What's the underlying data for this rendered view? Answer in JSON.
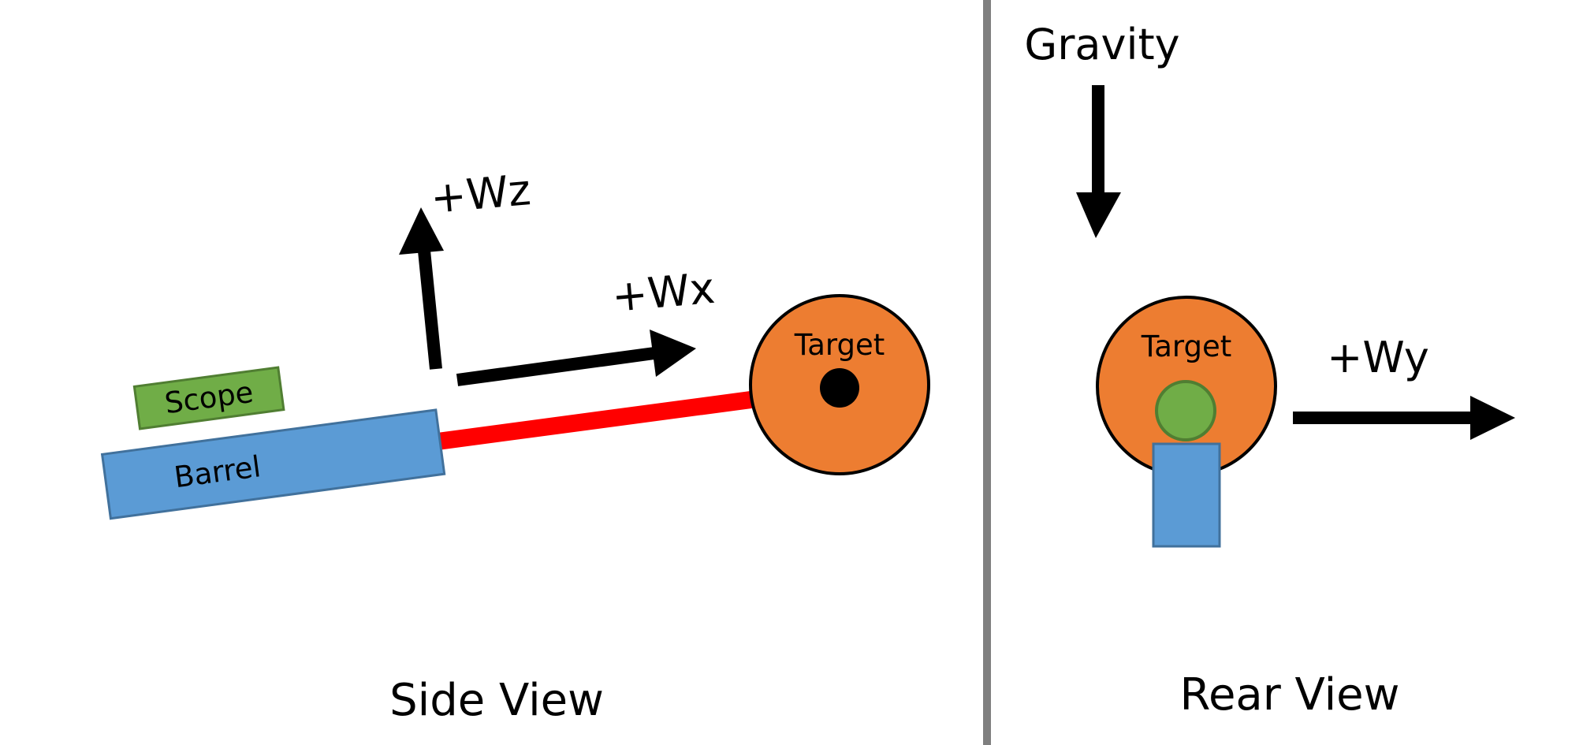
{
  "side_view": {
    "caption": "Side View",
    "axis_wz": "+Wz",
    "axis_wx": "+Wx",
    "scope_label": "Scope",
    "barrel_label": "Barrel",
    "target_label": "Target"
  },
  "rear_view": {
    "caption": "Rear View",
    "gravity_label": "Gravity",
    "axis_wy": "+Wy",
    "target_label": "Target"
  },
  "colors": {
    "target": "#ED7D31",
    "barrel": "#5B9BD5",
    "scope": "#70AD47",
    "trajectory": "#FF0000",
    "divider": "#7F7F7F"
  }
}
